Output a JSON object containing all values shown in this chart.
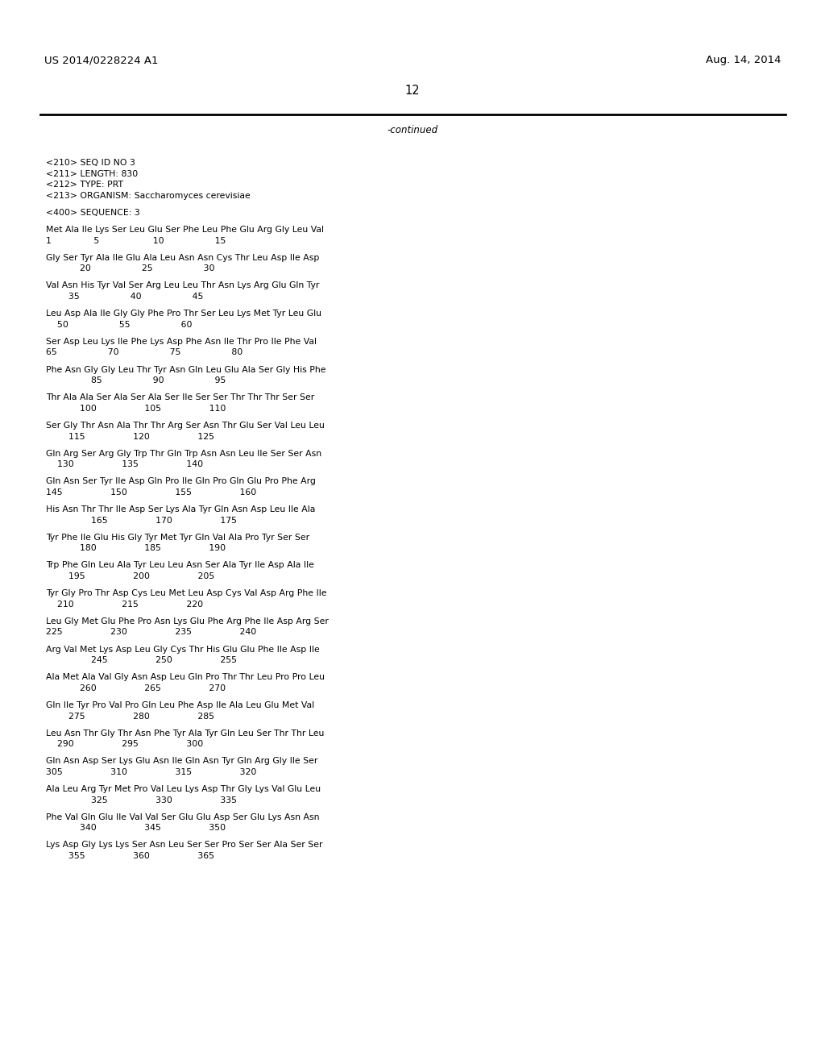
{
  "header_left": "US 2014/0228224 A1",
  "header_right": "Aug. 14, 2014",
  "page_number": "12",
  "continued_text": "-continued",
  "background_color": "#ffffff",
  "text_color": "#000000",
  "mono_font_size": 7.8,
  "header_font_size": 9.5,
  "page_num_font_size": 10.5,
  "continued_font_size": 8.5,
  "content_lines": [
    "<210> SEQ ID NO 3",
    "<211> LENGTH: 830",
    "<212> TYPE: PRT",
    "<213> ORGANISM: Saccharomyces cerevisiae",
    "",
    "<400> SEQUENCE: 3",
    "",
    "Met Ala Ile Lys Ser Leu Glu Ser Phe Leu Phe Glu Arg Gly Leu Val",
    "1               5                   10                  15",
    "",
    "Gly Ser Tyr Ala Ile Glu Ala Leu Asn Asn Cys Thr Leu Asp Ile Asp",
    "            20                  25                  30",
    "",
    "Val Asn His Tyr Val Ser Arg Leu Leu Thr Asn Lys Arg Glu Gln Tyr",
    "        35                  40                  45",
    "",
    "Leu Asp Ala Ile Gly Gly Phe Pro Thr Ser Leu Lys Met Tyr Leu Glu",
    "    50                  55                  60",
    "",
    "Ser Asp Leu Lys Ile Phe Lys Asp Phe Asn Ile Thr Pro Ile Phe Val",
    "65                  70                  75                  80",
    "",
    "Phe Asn Gly Gly Leu Thr Tyr Asn Gln Leu Glu Ala Ser Gly His Phe",
    "                85                  90                  95",
    "",
    "Thr Ala Ala Ser Ala Ser Ala Ser Ile Ser Ser Thr Thr Thr Ser Ser",
    "            100                 105                 110",
    "",
    "Ser Gly Thr Asn Ala Thr Thr Arg Ser Asn Thr Glu Ser Val Leu Leu",
    "        115                 120                 125",
    "",
    "Gln Arg Ser Arg Gly Trp Thr Gln Trp Asn Asn Leu Ile Ser Ser Asn",
    "    130                 135                 140",
    "",
    "Gln Asn Ser Tyr Ile Asp Gln Pro Ile Gln Pro Gln Glu Pro Phe Arg",
    "145                 150                 155                 160",
    "",
    "His Asn Thr Thr Ile Asp Ser Lys Ala Tyr Gln Asn Asp Leu Ile Ala",
    "                165                 170                 175",
    "",
    "Tyr Phe Ile Glu His Gly Tyr Met Tyr Gln Val Ala Pro Tyr Ser Ser",
    "            180                 185                 190",
    "",
    "Trp Phe Gln Leu Ala Tyr Leu Leu Asn Ser Ala Tyr Ile Asp Ala Ile",
    "        195                 200                 205",
    "",
    "Tyr Gly Pro Thr Asp Cys Leu Met Leu Asp Cys Val Asp Arg Phe Ile",
    "    210                 215                 220",
    "",
    "Leu Gly Met Glu Phe Pro Asn Lys Glu Phe Arg Phe Ile Asp Arg Ser",
    "225                 230                 235                 240",
    "",
    "Arg Val Met Lys Asp Leu Gly Cys Thr His Glu Glu Phe Ile Asp Ile",
    "                245                 250                 255",
    "",
    "Ala Met Ala Val Gly Asn Asp Leu Gln Pro Thr Thr Leu Pro Pro Leu",
    "            260                 265                 270",
    "",
    "Gln Ile Tyr Pro Val Pro Gln Leu Phe Asp Ile Ala Leu Glu Met Val",
    "        275                 280                 285",
    "",
    "Leu Asn Thr Gly Thr Asn Phe Tyr Ala Tyr Gln Leu Ser Thr Thr Leu",
    "    290                 295                 300",
    "",
    "Gln Asn Asp Ser Lys Glu Asn Ile Gln Asn Tyr Gln Arg Gly Ile Ser",
    "305                 310                 315                 320",
    "",
    "Ala Leu Arg Tyr Met Pro Val Leu Lys Asp Thr Gly Lys Val Glu Leu",
    "                325                 330                 335",
    "",
    "Phe Val Gln Glu Ile Val Val Ser Glu Glu Asp Ser Glu Lys Asn Asn",
    "            340                 345                 350",
    "",
    "Lys Asp Gly Lys Lys Ser Asn Leu Ser Ser Pro Ser Ser Ala Ser Ser",
    "        355                 360                 365"
  ]
}
